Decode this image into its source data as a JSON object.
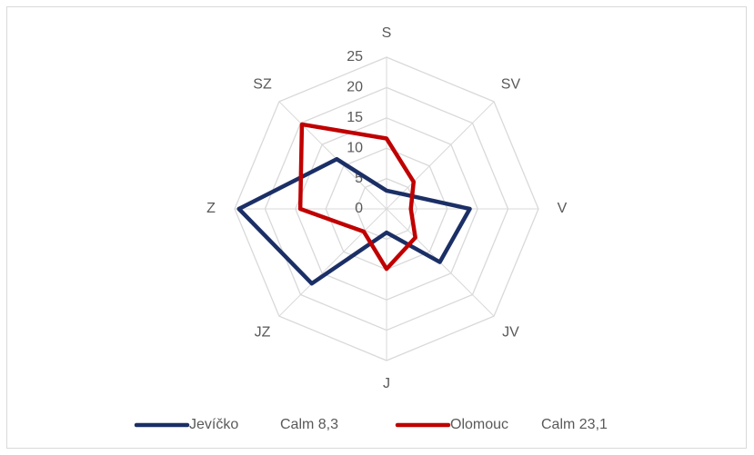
{
  "chart_data": {
    "type": "radar",
    "categories": [
      "S",
      "SV",
      "V",
      "JV",
      "J",
      "JZ",
      "Z",
      "SZ"
    ],
    "series": [
      {
        "name": "Jevíčko",
        "note": "Calm 8,3",
        "color": "#1b2f66",
        "values": [
          3,
          3.5,
          13.7,
          12.4,
          3.9,
          17.4,
          24.3,
          11.6
        ]
      },
      {
        "name": "Olomouc",
        "note": "Calm 23,1",
        "color": "#c00000",
        "values": [
          11.6,
          6.3,
          4,
          6.7,
          9.9,
          5.3,
          14.2,
          19.7
        ]
      }
    ],
    "ylim": [
      0,
      25
    ],
    "yticks": [
      0,
      5,
      10,
      15,
      20,
      25
    ],
    "grid": true
  }
}
